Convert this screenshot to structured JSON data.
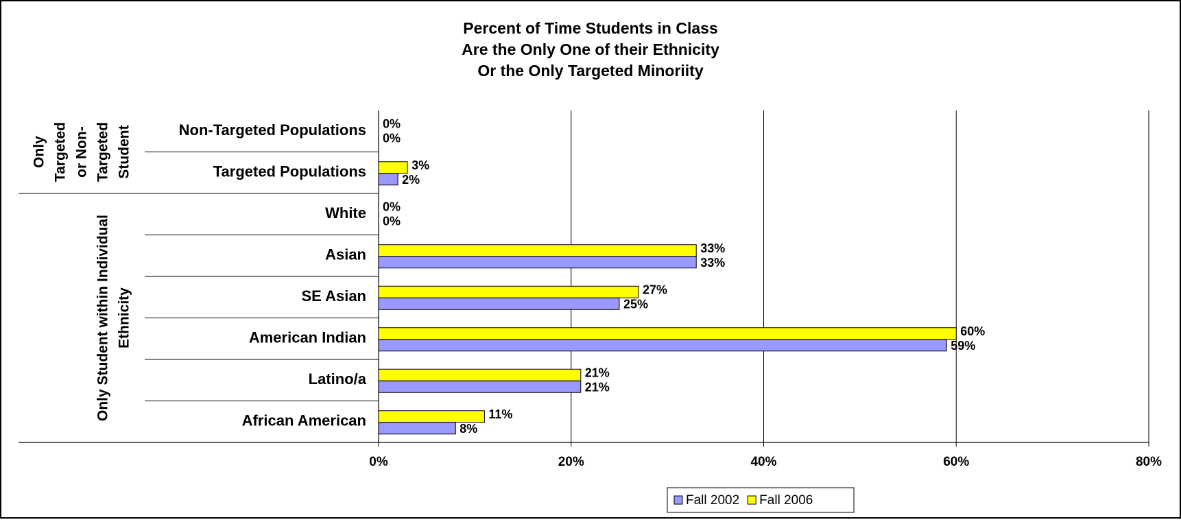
{
  "chart_data": {
    "type": "hbar",
    "title": [
      "Percent of Time Students in Class",
      "Are the Only One of their Ethnicity",
      "Or the Only Targeted Minoriity"
    ],
    "groups": [
      {
        "lines": [
          "Only",
          "Targeted",
          "or Non-",
          "Targeted",
          "Student"
        ]
      },
      {
        "lines": [
          "Only Student within Individual",
          "Ethnicity"
        ]
      }
    ],
    "categories": [
      "Non-Targeted Populations",
      "Targeted Populations",
      "White",
      "Asian",
      "SE Asian",
      "American Indian",
      "Latino/a",
      "African American"
    ],
    "series": [
      {
        "name": "Fall 2002",
        "color": "#9999ff",
        "values": [
          0,
          2,
          0,
          33,
          25,
          59,
          21,
          8
        ],
        "value_labels": [
          "0%",
          "2%",
          "0%",
          "33%",
          "25%",
          "59%",
          "21%",
          "8%"
        ]
      },
      {
        "name": "Fall 2006",
        "color": "#ffff00",
        "values": [
          0,
          3,
          0,
          33,
          27,
          60,
          21,
          11
        ],
        "value_labels": [
          "0%",
          "3%",
          "0%",
          "33%",
          "27%",
          "60%",
          "21%",
          "11%"
        ]
      }
    ],
    "xlim": [
      0,
      80
    ],
    "xticks": [
      {
        "value": 0,
        "label": "0%"
      },
      {
        "value": 20,
        "label": "20%"
      },
      {
        "value": 40,
        "label": "40%"
      },
      {
        "value": 60,
        "label": "60%"
      },
      {
        "value": 80,
        "label": "80%"
      }
    ],
    "grid": true,
    "legend": "bottom"
  }
}
